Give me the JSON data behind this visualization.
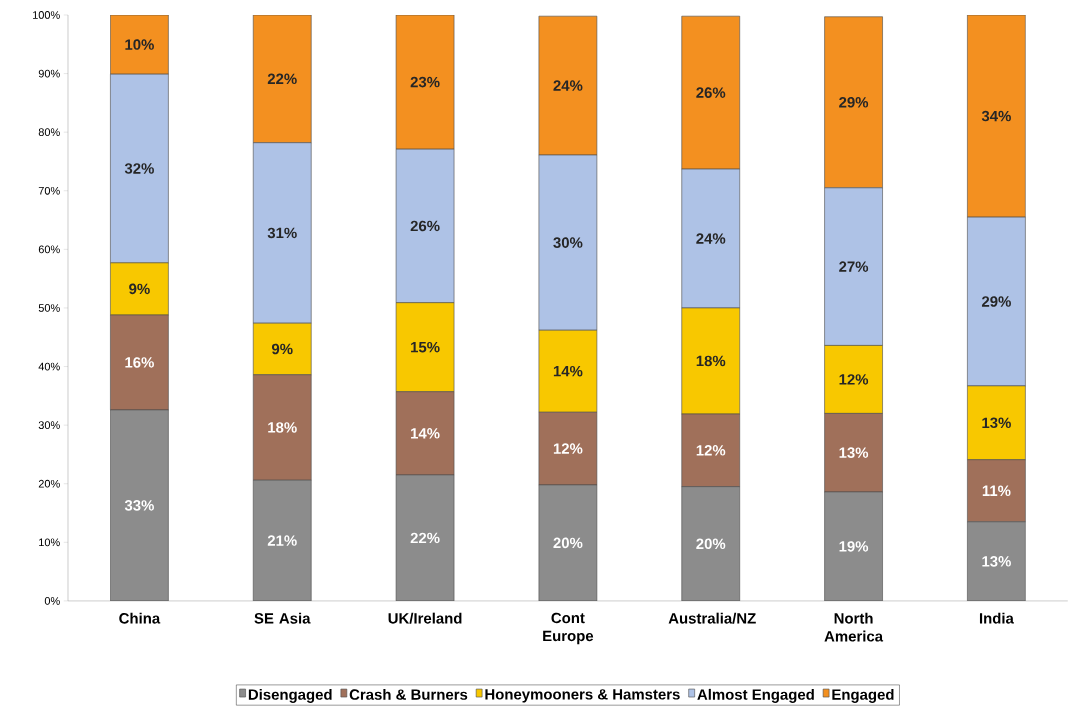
{
  "chart_data": {
    "type": "bar",
    "stacked": true,
    "legend": "bottom",
    "ylim": [
      0,
      100
    ],
    "yticks": [
      {
        "value": 0,
        "label": "0%"
      },
      {
        "value": 10,
        "label": "10%"
      },
      {
        "value": 20,
        "label": "20%"
      },
      {
        "value": 30,
        "label": "30%"
      },
      {
        "value": 40,
        "label": "40%"
      },
      {
        "value": 50,
        "label": "50%"
      },
      {
        "value": 60,
        "label": "60%"
      },
      {
        "value": 70,
        "label": "70%"
      },
      {
        "value": 80,
        "label": "80%"
      },
      {
        "value": 90,
        "label": "90%"
      },
      {
        "value": 100,
        "label": "100%"
      }
    ],
    "categories": [
      "China",
      "SE Asia",
      "UK/Ireland",
      "Cont Europe",
      "Australia/NZ",
      "North America",
      "India"
    ],
    "series": [
      {
        "name": "Disengaged",
        "color": "#8c8c8c",
        "values": [
          32.6,
          20.6,
          21.5,
          19.8,
          19.5,
          18.6,
          13.5
        ],
        "value_labels": [
          "33%",
          "21%",
          "22%",
          "20%",
          "20%",
          "19%",
          "13%"
        ]
      },
      {
        "name": "Crash & Burners",
        "color": "#a0705a",
        "values": [
          16.2,
          18.0,
          14.2,
          12.4,
          12.4,
          13.4,
          10.6
        ],
        "value_labels": [
          "16%",
          "18%",
          "14%",
          "12%",
          "12%",
          "13%",
          "11%"
        ]
      },
      {
        "name": "Honeymooners & Hamsters",
        "color": "#f8c800",
        "values": [
          8.9,
          8.8,
          15.2,
          14.0,
          18.1,
          11.6,
          12.6
        ],
        "value_labels": [
          "9%",
          "9%",
          "15%",
          "14%",
          "18%",
          "12%",
          "13%"
        ]
      },
      {
        "name": "Almost Engaged",
        "color": "#aec2e6",
        "values": [
          32.2,
          30.8,
          26.2,
          29.9,
          23.7,
          26.9,
          28.8
        ],
        "value_labels": [
          "32%",
          "31%",
          "26%",
          "30%",
          "24%",
          "27%",
          "29%"
        ]
      },
      {
        "name": "Engaged",
        "color": "#f39020",
        "values": [
          10.1,
          21.8,
          22.9,
          23.7,
          26.1,
          29.2,
          34.5
        ],
        "value_labels": [
          "10%",
          "22%",
          "23%",
          "24%",
          "26%",
          "29%",
          "34%"
        ]
      }
    ]
  }
}
